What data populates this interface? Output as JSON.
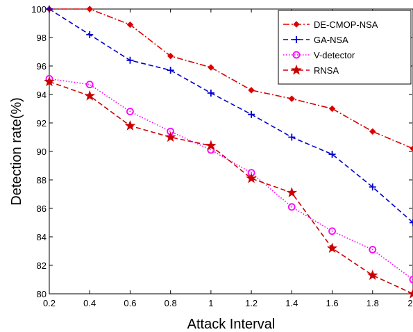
{
  "chart_data": {
    "type": "line",
    "title": "",
    "xlabel": "Attack Interval",
    "ylabel": "Detection rate(%)",
    "xlim": [
      0.2,
      2
    ],
    "ylim": [
      80,
      100
    ],
    "x": [
      0.2,
      0.4,
      0.6,
      0.8,
      1.0,
      1.2,
      1.4,
      1.6,
      1.8,
      2.0
    ],
    "x_tick_labels": [
      "0.2",
      "0.4",
      "0.6",
      "0.8",
      "1",
      "1.2",
      "1.4",
      "1.6",
      "1.8",
      "2"
    ],
    "y_ticks": [
      80,
      82,
      84,
      86,
      88,
      90,
      92,
      94,
      96,
      98,
      100
    ],
    "y_tick_labels": [
      "80",
      "82",
      "84",
      "86",
      "88",
      "90",
      "92",
      "94",
      "96",
      "98",
      "100"
    ],
    "grid": false,
    "legend_position": "top-right",
    "series": [
      {
        "name": "DE-CMOP-NSA",
        "color": "#dd0000",
        "line_style": "dash-dot",
        "marker": "diamond",
        "values": [
          100.0,
          100.0,
          98.9,
          96.7,
          95.9,
          94.3,
          93.7,
          93.0,
          91.4,
          90.2
        ]
      },
      {
        "name": "GA-NSA",
        "color": "#0000cc",
        "line_style": "dashed",
        "marker": "plus",
        "values": [
          100.0,
          98.2,
          96.4,
          95.7,
          94.1,
          92.6,
          91.0,
          89.8,
          87.5,
          85.0
        ]
      },
      {
        "name": "V-detector",
        "color": "#ff00ff",
        "line_style": "dotted",
        "marker": "circle",
        "values": [
          95.1,
          94.7,
          92.8,
          91.4,
          90.1,
          88.5,
          86.1,
          84.4,
          83.1,
          81.0
        ]
      },
      {
        "name": "RNSA",
        "color": "#cc0000",
        "line_style": "dashed",
        "marker": "star",
        "values": [
          94.9,
          93.9,
          91.8,
          91.0,
          90.4,
          88.1,
          87.1,
          83.2,
          81.3,
          80.0
        ]
      }
    ]
  }
}
